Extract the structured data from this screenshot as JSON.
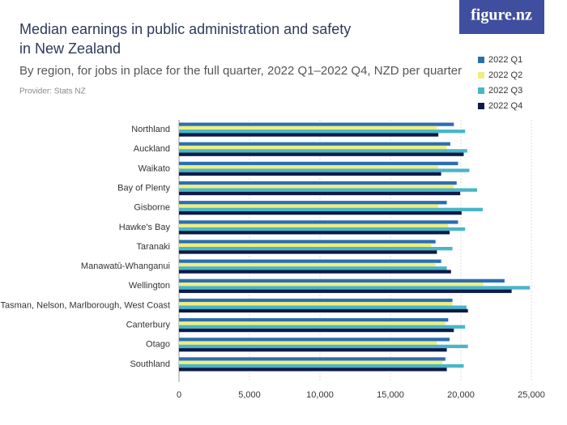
{
  "chart_data": {
    "type": "hbar",
    "title": [
      "Median earnings in public administration and safety",
      "in New Zealand"
    ],
    "subtitle": "By region, for jobs in place for the full quarter, 2022 Q1–2022 Q4, NZD per quarter",
    "provider": "Provider: Stats NZ",
    "logo": "figure.nz",
    "categories": [
      "Northland",
      "Auckland",
      "Waikato",
      "Bay of Plenty",
      "Gisborne",
      "Hawke's Bay",
      "Taranaki",
      "Manawatū-Whanganui",
      "Wellington",
      "Tasman, Nelson, Marlborough, West Coast",
      "Canterbury",
      "Otago",
      "Southland"
    ],
    "series": [
      {
        "name": "2022 Q1",
        "color": "#2b6fb1",
        "values": [
          19500,
          19250,
          19800,
          19700,
          19000,
          19800,
          18200,
          18600,
          23100,
          19400,
          19100,
          19200,
          18900
        ]
      },
      {
        "name": "2022 Q2",
        "color": "#f2ee7c",
        "values": [
          18300,
          19000,
          18400,
          19500,
          18400,
          19100,
          17900,
          18200,
          21600,
          19400,
          18900,
          18300,
          18700
        ]
      },
      {
        "name": "2022 Q3",
        "color": "#48b6c6",
        "values": [
          20300,
          20450,
          20600,
          21150,
          21550,
          20300,
          19400,
          19000,
          24900,
          20400,
          20300,
          20500,
          20200
        ]
      },
      {
        "name": "2022 Q4",
        "color": "#0d1a4a",
        "values": [
          18400,
          20200,
          18600,
          19950,
          20050,
          19200,
          18300,
          19300,
          23600,
          20500,
          19500,
          19000,
          19000
        ]
      }
    ],
    "xlim": [
      0,
      25000
    ],
    "xticks": [
      0,
      {
        "value": 5000,
        "label": "5,000"
      },
      {
        "value": 10000,
        "label": "10,000"
      },
      {
        "value": 15000,
        "label": "15,000"
      },
      {
        "value": 20000,
        "label": "20,000"
      },
      {
        "value": 25000,
        "label": "25,000"
      }
    ],
    "grid": true
  }
}
